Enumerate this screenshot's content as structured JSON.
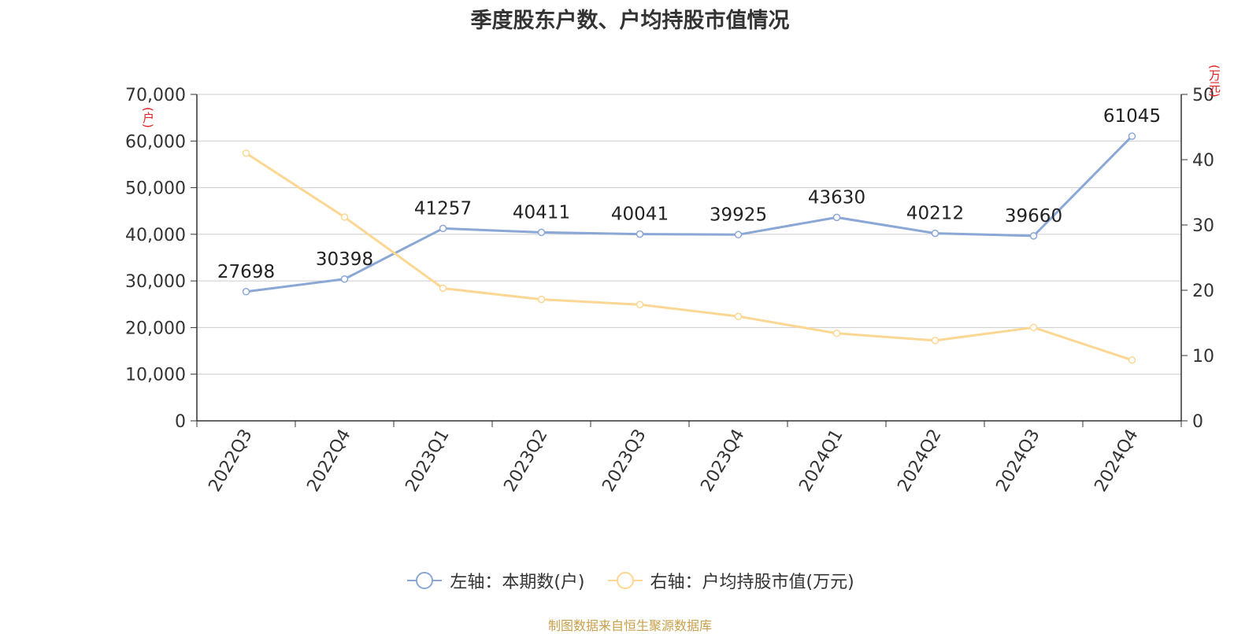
{
  "colors": {
    "left_series": "#8aa7d6",
    "right_series": "#fbd793",
    "axis_text": "#333333",
    "grid": "#cccccc",
    "unit_text": "#e02020",
    "source_text": "#c8a04a"
  },
  "chart_data": {
    "type": "line",
    "title": "季度股东户数、户均持股市值情况",
    "categories": [
      "2022Q3",
      "2022Q4",
      "2023Q1",
      "2023Q2",
      "2023Q3",
      "2023Q4",
      "2024Q1",
      "2024Q2",
      "2024Q3",
      "2024Q4"
    ],
    "left_axis": {
      "unit": "(户)",
      "min": 0,
      "max": 70000,
      "ticks": [
        0,
        10000,
        20000,
        30000,
        40000,
        50000,
        60000,
        70000
      ],
      "tick_labels": [
        "0",
        "10,000",
        "20,000",
        "30,000",
        "40,000",
        "50,000",
        "60,000",
        "70,000"
      ]
    },
    "right_axis": {
      "unit": "(万元)",
      "min": 0,
      "max": 50,
      "ticks": [
        0,
        10,
        20,
        30,
        40,
        50
      ],
      "tick_labels": [
        "0",
        "10",
        "20",
        "30",
        "40",
        "50"
      ]
    },
    "series": [
      {
        "name": "左轴：本期数(户)",
        "axis": "left",
        "values": [
          27698,
          30398,
          41257,
          40411,
          40041,
          39925,
          43630,
          40212,
          39660,
          61045
        ],
        "labels": [
          "27698",
          "30398",
          "41257",
          "40411",
          "40041",
          "39925",
          "43630",
          "40212",
          "39660",
          "61045"
        ]
      },
      {
        "name": "右轴：户均持股市值(万元)",
        "axis": "right",
        "values": [
          41.0,
          31.2,
          20.3,
          18.6,
          17.8,
          16.0,
          13.4,
          12.3,
          14.3,
          9.3
        ]
      }
    ],
    "grid": true,
    "legend": "bottom"
  },
  "source": "制图数据来自恒生聚源数据库"
}
